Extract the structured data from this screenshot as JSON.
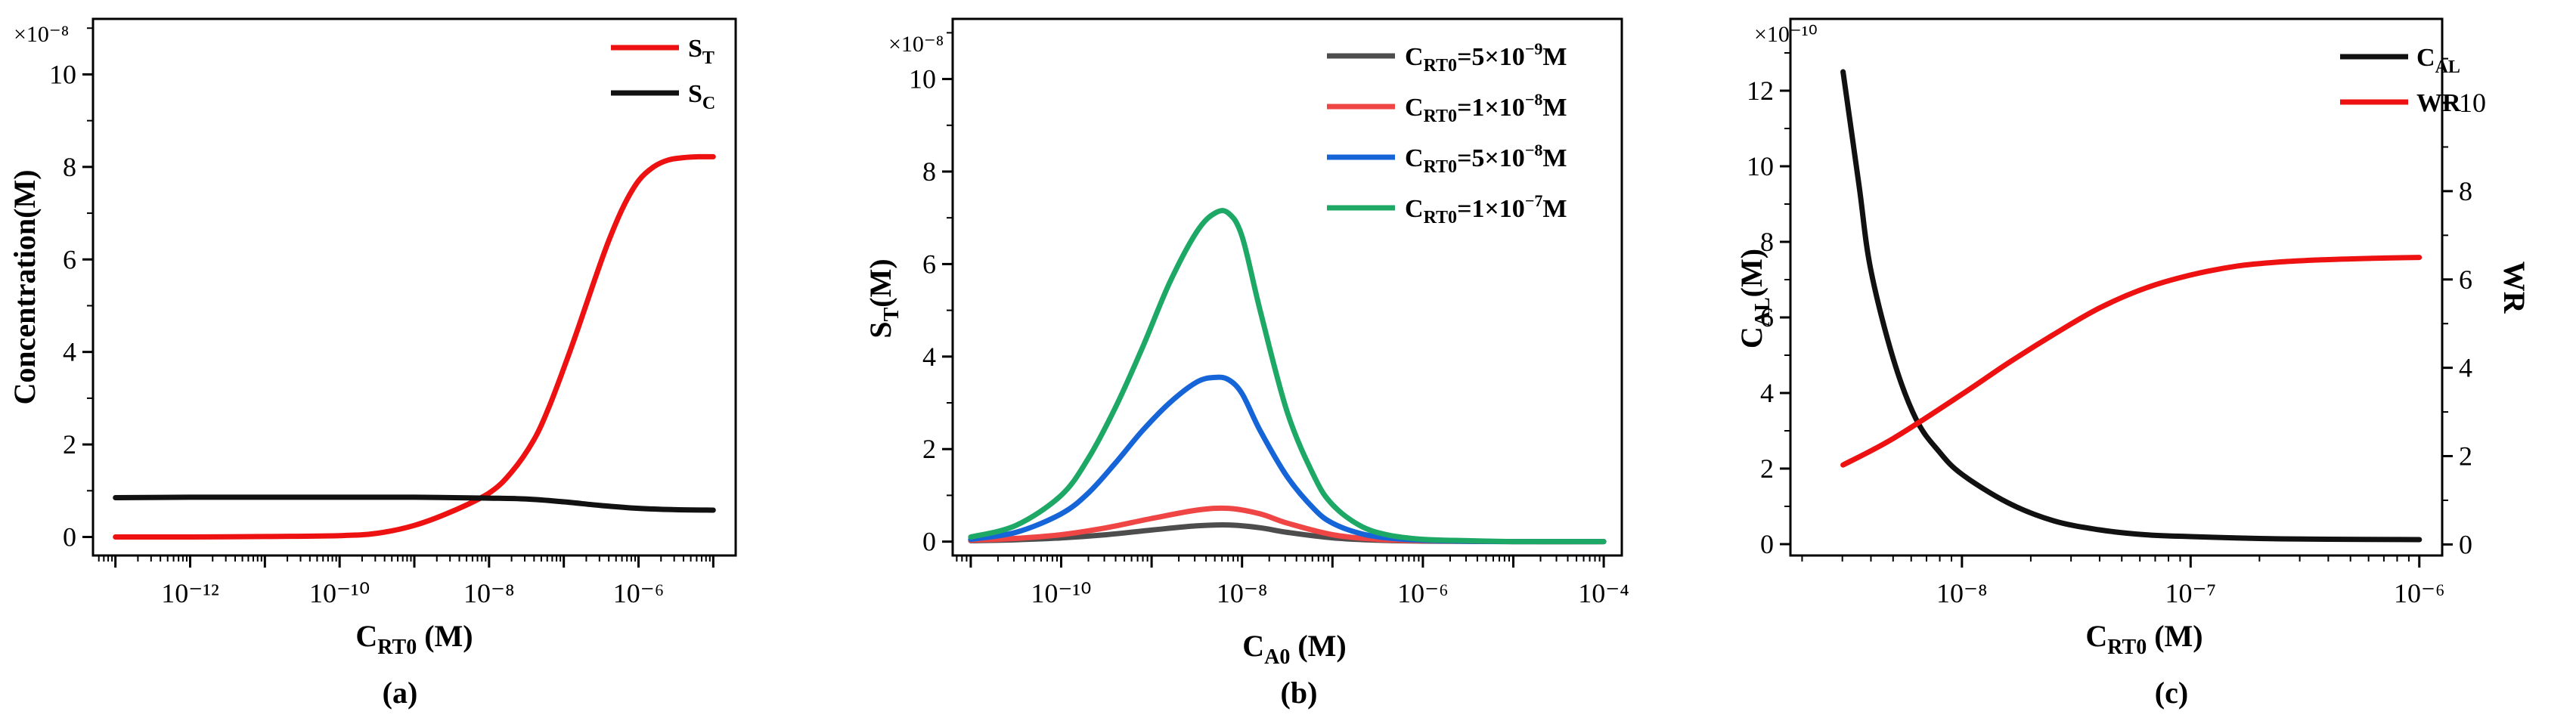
{
  "chart_data": [
    {
      "type": "line",
      "panel": "(a)",
      "xscale": "log",
      "xlim_log10": [
        -13.3,
        -4.7
      ],
      "ylim": [
        -0.4,
        11.2
      ],
      "y_multiplier": "×10⁻⁸",
      "xlabel": "C_RT0 (M)",
      "ylabel": "Concentration(M)",
      "x_major_ticks": [
        {
          "exp": -12,
          "label": "10⁻¹²"
        },
        {
          "exp": -10,
          "label": "10⁻¹⁰"
        },
        {
          "exp": -8,
          "label": "10⁻⁸"
        },
        {
          "exp": -6,
          "label": "10⁻⁶"
        }
      ],
      "y_ticks": [
        {
          "value": 0,
          "label": "0"
        },
        {
          "value": 2,
          "label": "2"
        },
        {
          "value": 4,
          "label": "4"
        },
        {
          "value": 6,
          "label": "6"
        },
        {
          "value": 8,
          "label": "8"
        },
        {
          "value": 10,
          "label": "10"
        }
      ],
      "legend_position": "top-right",
      "series": [
        {
          "name": "S_T",
          "color": "#ee1111",
          "x_log10": [
            -13,
            -12,
            -11,
            -10,
            -9.5,
            -9,
            -8.5,
            -8,
            -7.7,
            -7.4,
            -7.2,
            -7,
            -6.8,
            -6.6,
            -6.4,
            -6.2,
            -6,
            -5.8,
            -5.6,
            -5.4,
            -5.2,
            -5
          ],
          "y": [
            0,
            0,
            0.01,
            0.03,
            0.08,
            0.25,
            0.55,
            0.95,
            1.4,
            2.1,
            2.8,
            3.65,
            4.55,
            5.5,
            6.4,
            7.15,
            7.7,
            8.0,
            8.15,
            8.2,
            8.22,
            8.22
          ]
        },
        {
          "name": "S_C",
          "color": "#111111",
          "x_log10": [
            -13,
            -12,
            -11,
            -10,
            -9,
            -8,
            -7.5,
            -7,
            -6.5,
            -6,
            -5.5,
            -5
          ],
          "y": [
            0.85,
            0.86,
            0.86,
            0.86,
            0.86,
            0.84,
            0.82,
            0.76,
            0.68,
            0.62,
            0.59,
            0.58
          ]
        }
      ]
    },
    {
      "type": "line",
      "panel": "(b)",
      "xscale": "log",
      "xlim_log10": [
        -11.2,
        -3.8
      ],
      "ylim": [
        -0.3,
        11.3
      ],
      "y_multiplier": "×10⁻⁸",
      "xlabel": "C_A0 (M)",
      "ylabel": "S_T(M)",
      "x_major_ticks": [
        {
          "exp": -10,
          "label": "10⁻¹⁰"
        },
        {
          "exp": -8,
          "label": "10⁻⁸"
        },
        {
          "exp": -6,
          "label": "10⁻⁶"
        },
        {
          "exp": -4,
          "label": "10⁻⁴"
        }
      ],
      "y_ticks": [
        {
          "value": 0,
          "label": "0"
        },
        {
          "value": 2,
          "label": "2"
        },
        {
          "value": 4,
          "label": "4"
        },
        {
          "value": 6,
          "label": "6"
        },
        {
          "value": 8,
          "label": "8"
        },
        {
          "value": 10,
          "label": "10"
        }
      ],
      "legend_position": "top-right",
      "series": [
        {
          "name": "C_RT0=5×10⁻⁹M",
          "color": "#4d4d4d",
          "x_log10": [
            -11,
            -10.5,
            -10,
            -9.5,
            -9,
            -8.5,
            -8.15,
            -7.8,
            -7.5,
            -7,
            -6.5,
            -6,
            -5,
            -4
          ],
          "y": [
            0.02,
            0.04,
            0.08,
            0.15,
            0.25,
            0.34,
            0.36,
            0.3,
            0.2,
            0.08,
            0.03,
            0.01,
            0,
            0
          ]
        },
        {
          "name": "C_RT0=1×10⁻⁸M",
          "color": "#f04545",
          "x_log10": [
            -11,
            -10.5,
            -10,
            -9.5,
            -9,
            -8.5,
            -8.15,
            -7.8,
            -7.5,
            -7,
            -6.5,
            -6,
            -5,
            -4
          ],
          "y": [
            0.03,
            0.07,
            0.15,
            0.3,
            0.5,
            0.68,
            0.72,
            0.6,
            0.4,
            0.15,
            0.05,
            0.02,
            0,
            0
          ]
        },
        {
          "name": "C_RT0=5×10⁻⁸M",
          "color": "#1565d8",
          "x_log10": [
            -11,
            -10.5,
            -10,
            -9.7,
            -9.4,
            -9.1,
            -8.8,
            -8.5,
            -8.3,
            -8.15,
            -8,
            -7.8,
            -7.5,
            -7.2,
            -7,
            -6.7,
            -6.4,
            -6,
            -5.5,
            -5,
            -4
          ],
          "y": [
            0.05,
            0.2,
            0.6,
            1.05,
            1.7,
            2.4,
            3.0,
            3.45,
            3.55,
            3.5,
            3.2,
            2.4,
            1.4,
            0.7,
            0.4,
            0.18,
            0.08,
            0.03,
            0.01,
            0,
            0
          ]
        },
        {
          "name": "C_RT0=1×10⁻⁷M",
          "color": "#1da866",
          "x_log10": [
            -11,
            -10.5,
            -10,
            -9.7,
            -9.4,
            -9.1,
            -8.8,
            -8.5,
            -8.3,
            -8.15,
            -8,
            -7.8,
            -7.5,
            -7.2,
            -7,
            -6.7,
            -6.4,
            -6,
            -5.5,
            -5,
            -4
          ],
          "y": [
            0.1,
            0.35,
            1.0,
            1.8,
            2.9,
            4.2,
            5.6,
            6.7,
            7.1,
            7.1,
            6.6,
            5.0,
            2.8,
            1.4,
            0.8,
            0.35,
            0.15,
            0.05,
            0.02,
            0,
            0
          ]
        }
      ]
    },
    {
      "type": "line",
      "panel": "(c)",
      "xscale": "log",
      "xlim_log10": [
        -8.75,
        -5.9
      ],
      "ylim": [
        -0.3,
        13.9
      ],
      "y2lim": [
        -0.25,
        11.9
      ],
      "y_multiplier": "×10⁻¹⁰",
      "xlabel": "C_RT0 (M)",
      "ylabel": "C_AL(M)",
      "y2label": "WR",
      "x_major_ticks": [
        {
          "exp": -8,
          "label": "10⁻⁸"
        },
        {
          "exp": -7,
          "label": "10⁻⁷"
        },
        {
          "exp": -6,
          "label": "10⁻⁶"
        }
      ],
      "y_ticks": [
        {
          "value": 0,
          "label": "0"
        },
        {
          "value": 2,
          "label": "2"
        },
        {
          "value": 4,
          "label": "4"
        },
        {
          "value": 6,
          "label": "6"
        },
        {
          "value": 8,
          "label": "8"
        },
        {
          "value": 10,
          "label": "10"
        },
        {
          "value": 12,
          "label": "12"
        }
      ],
      "y2_ticks": [
        {
          "value": 0,
          "label": "0"
        },
        {
          "value": 2,
          "label": "2"
        },
        {
          "value": 4,
          "label": "4"
        },
        {
          "value": 6,
          "label": "6"
        },
        {
          "value": 8,
          "label": "8"
        },
        {
          "value": 10,
          "label": "10"
        }
      ],
      "legend_position": "top-right",
      "series": [
        {
          "name": "C_AL",
          "color": "#111111",
          "axis": "left",
          "x_log10": [
            -8.52,
            -8.45,
            -8.4,
            -8.3,
            -8.2,
            -8.1,
            -8,
            -7.8,
            -7.6,
            -7.4,
            -7.2,
            -7,
            -6.7,
            -6.4,
            -6
          ],
          "y": [
            12.5,
            9.5,
            7.3,
            4.9,
            3.3,
            2.45,
            1.85,
            1.1,
            0.62,
            0.38,
            0.25,
            0.2,
            0.15,
            0.13,
            0.12
          ]
        },
        {
          "name": "WR",
          "color": "#ee1111",
          "axis": "right",
          "x_log10": [
            -8.52,
            -8.3,
            -8,
            -7.8,
            -7.6,
            -7.4,
            -7.2,
            -7,
            -6.8,
            -6.6,
            -6.4,
            -6.2,
            -6
          ],
          "y": [
            1.8,
            2.4,
            3.4,
            4.1,
            4.75,
            5.35,
            5.8,
            6.1,
            6.3,
            6.4,
            6.45,
            6.48,
            6.5
          ]
        }
      ]
    }
  ]
}
